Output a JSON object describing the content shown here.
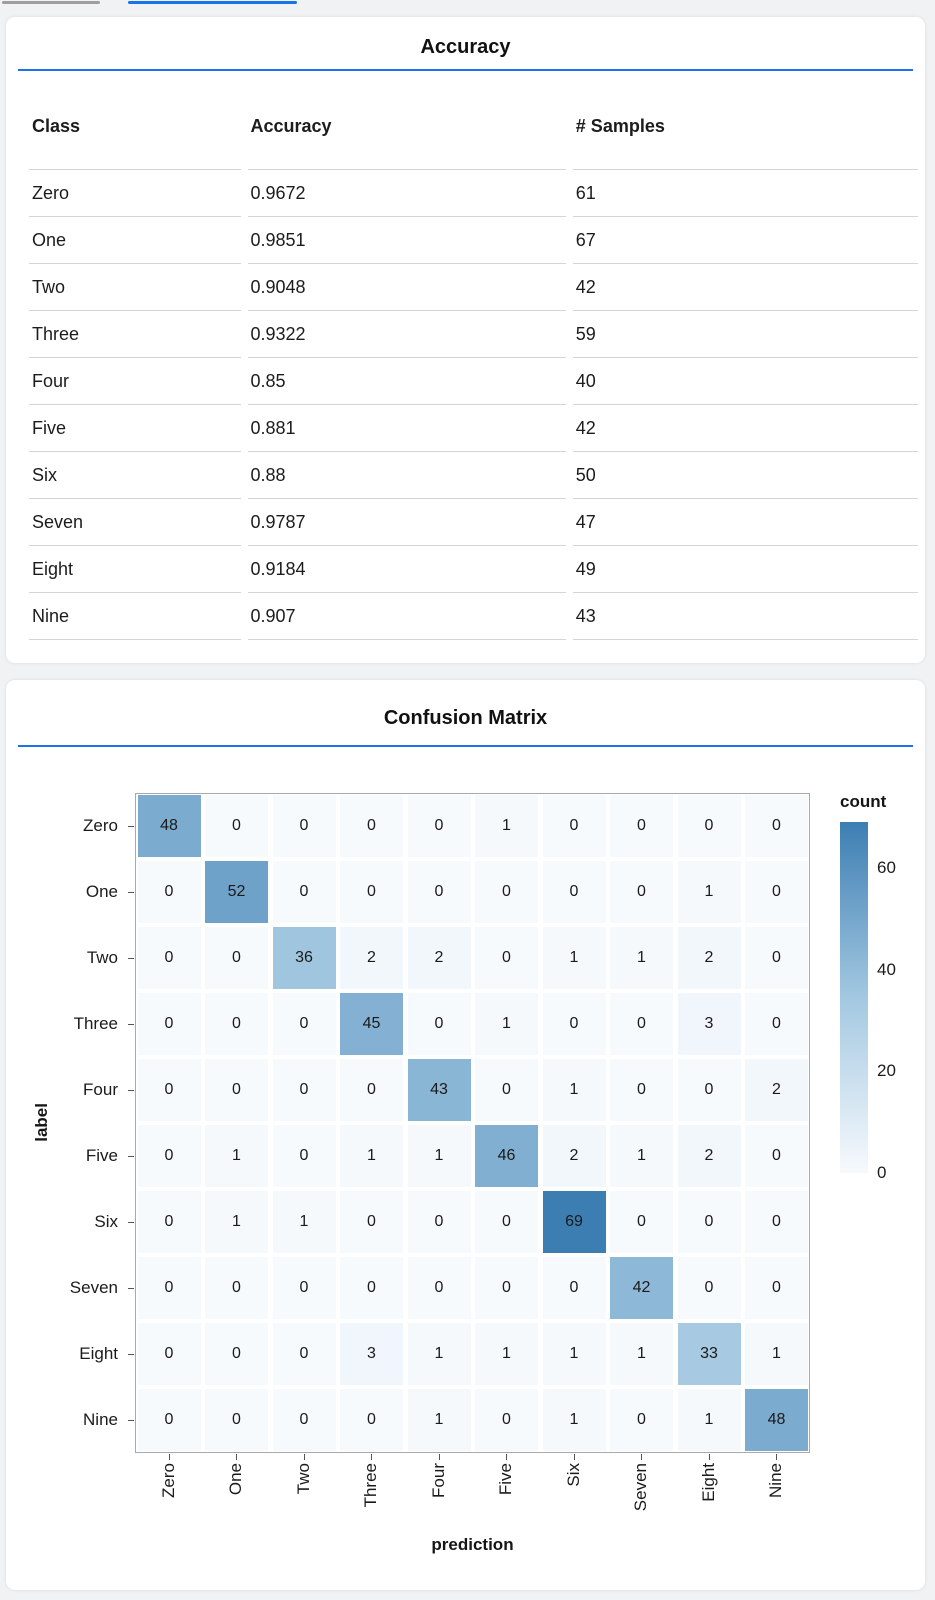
{
  "header": {
    "inactive_indicator_color": "#9e9e9e",
    "active_indicator_color": "#1a73e8"
  },
  "accent_color": "#1a73e8",
  "chart_data": [
    {
      "type": "table",
      "title": "Accuracy",
      "columns": [
        "Class",
        "Accuracy",
        "# Samples"
      ],
      "rows": [
        [
          "Zero",
          "0.9672",
          "61"
        ],
        [
          "One",
          "0.9851",
          "67"
        ],
        [
          "Two",
          "0.9048",
          "42"
        ],
        [
          "Three",
          "0.9322",
          "59"
        ],
        [
          "Four",
          "0.85",
          "40"
        ],
        [
          "Five",
          "0.881",
          "42"
        ],
        [
          "Six",
          "0.88",
          "50"
        ],
        [
          "Seven",
          "0.9787",
          "47"
        ],
        [
          "Eight",
          "0.9184",
          "49"
        ],
        [
          "Nine",
          "0.907",
          "43"
        ]
      ]
    },
    {
      "type": "heatmap",
      "title": "Confusion Matrix",
      "xlabel": "prediction",
      "ylabel": "label",
      "x_categories": [
        "Zero",
        "One",
        "Two",
        "Three",
        "Four",
        "Five",
        "Six",
        "Seven",
        "Eight",
        "Nine"
      ],
      "y_categories": [
        "Zero",
        "One",
        "Two",
        "Three",
        "Four",
        "Five",
        "Six",
        "Seven",
        "Eight",
        "Nine"
      ],
      "values": [
        [
          48,
          0,
          0,
          0,
          0,
          1,
          0,
          0,
          0,
          0
        ],
        [
          0,
          52,
          0,
          0,
          0,
          0,
          0,
          0,
          1,
          0
        ],
        [
          0,
          0,
          36,
          2,
          2,
          0,
          1,
          1,
          2,
          0
        ],
        [
          0,
          0,
          0,
          45,
          0,
          1,
          0,
          0,
          3,
          0
        ],
        [
          0,
          0,
          0,
          0,
          43,
          0,
          1,
          0,
          0,
          2
        ],
        [
          0,
          1,
          0,
          1,
          1,
          46,
          2,
          1,
          2,
          0
        ],
        [
          0,
          1,
          1,
          0,
          0,
          0,
          69,
          0,
          0,
          0
        ],
        [
          0,
          0,
          0,
          0,
          0,
          0,
          0,
          42,
          0,
          0
        ],
        [
          0,
          0,
          0,
          3,
          1,
          1,
          1,
          1,
          33,
          1
        ],
        [
          0,
          0,
          0,
          0,
          1,
          0,
          1,
          0,
          1,
          48
        ]
      ],
      "legend": {
        "title": "count",
        "ticks": [
          60,
          40,
          20,
          0
        ],
        "domain": [
          0,
          69
        ],
        "position": "right"
      },
      "colors": {
        "scale_min": "#f7fafd",
        "scale_mid": "#a3c8e1",
        "scale_max": "#3d7eb2"
      },
      "grid": false
    }
  ]
}
